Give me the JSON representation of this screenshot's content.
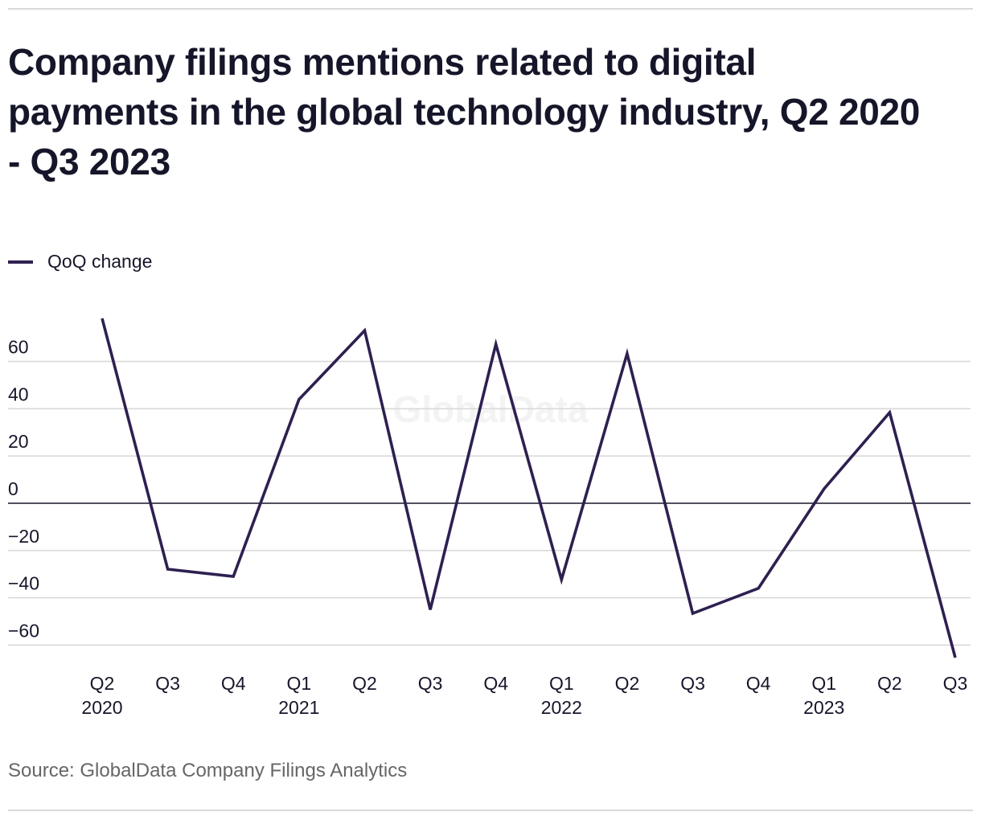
{
  "title": "Company filings mentions related to digital payments in the global technology industry, Q2 2020 - Q3 2023",
  "legend": {
    "items": [
      {
        "label": "QoQ change",
        "color": "#2e2050"
      }
    ]
  },
  "watermark": "GlobalData",
  "source": "Source: GlobalData Company Filings Analytics",
  "chart_data": {
    "type": "line",
    "title": "Company filings mentions related to digital payments in the global technology industry, Q2 2020 - Q3 2023",
    "xlabel": "",
    "ylabel": "",
    "categories": [
      [
        "Q2",
        "2020"
      ],
      [
        "Q3",
        ""
      ],
      [
        "Q4",
        ""
      ],
      [
        "Q1",
        "2021"
      ],
      [
        "Q2",
        ""
      ],
      [
        "Q3",
        ""
      ],
      [
        "Q4",
        ""
      ],
      [
        "Q1",
        "2022"
      ],
      [
        "Q2",
        ""
      ],
      [
        "Q3",
        ""
      ],
      [
        "Q4",
        ""
      ],
      [
        "Q1",
        "2023"
      ],
      [
        "Q2",
        ""
      ],
      [
        "Q3",
        ""
      ]
    ],
    "series": [
      {
        "name": "QoQ change",
        "color": "#2e2050",
        "values": [
          78.2,
          -27.9,
          -31.0,
          43.9,
          73.1,
          -45.0,
          67.3,
          -32.3,
          63.3,
          -46.6,
          -36.0,
          6.1,
          38.4,
          -65.3
        ]
      }
    ],
    "yticks": [
      60,
      40,
      20,
      0,
      -20,
      -40,
      -60
    ],
    "ytick_labels": [
      "60",
      "40",
      "20",
      "0",
      "−20",
      "−40",
      "−60"
    ],
    "ylim": [
      -70,
      80
    ],
    "grid": true,
    "legend_position": "top-left"
  }
}
